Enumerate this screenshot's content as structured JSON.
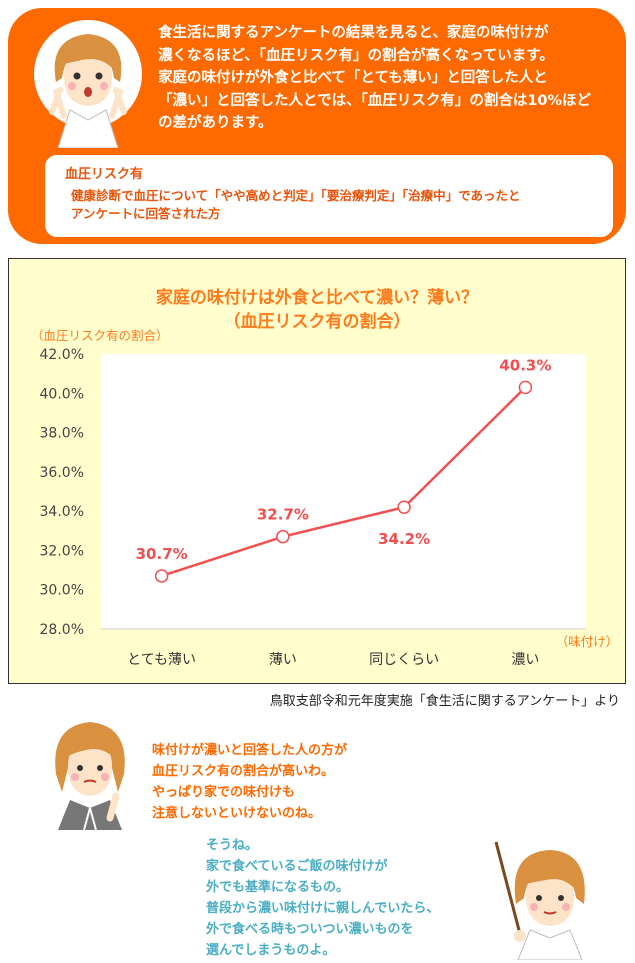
{
  "intro": {
    "lines": [
      "食生活に関するアンケートの結果を見ると、家庭の味付けが",
      "濃くなるほど、「血圧リスク有」の割合が高くなっています。",
      "家庭の味付けが外食と比べて「とても薄い」と回答した人と",
      "「濃い」と回答した人とでは、「血圧リスク有」の割合は10%ほど",
      "の差があります。"
    ]
  },
  "definition": {
    "title": "血圧リスク有",
    "lines": [
      "健康診断で血圧について「やや高めと判定」「要治療判定」「治療中」であったと",
      "アンケートに回答された方"
    ]
  },
  "chart_data": {
    "type": "line",
    "title": "家庭の味付けは外食と比べて濃い？薄い？",
    "subtitle": "（血圧リスク有の割合）",
    "ylabel": "（血圧リスク有の割合）",
    "xlabel": "（味付け）",
    "categories": [
      "とても薄い",
      "薄い",
      "同じくらい",
      "濃い"
    ],
    "values": [
      30.7,
      32.7,
      34.2,
      40.3
    ],
    "data_labels": [
      "30.7%",
      "32.7%",
      "34.2%",
      "40.3%"
    ],
    "y_ticks": [
      "42.0%",
      "40.0%",
      "38.0%",
      "36.0%",
      "34.0%",
      "32.0%",
      "30.0%",
      "28.0%"
    ],
    "ylim": [
      28,
      42
    ],
    "grid": false,
    "line_color": "#f0504f",
    "label_color": "#f0504f",
    "title_color": "#ff7a1a"
  },
  "source": "鳥取支部令和元年度実施「食生活に関するアンケート」より",
  "speech_woman": [
    "味付けが濃いと回答した人の方が",
    "血圧リスク有の割合が高いわ。",
    "やっぱり家での味付けも",
    "注意しないといけないのね。"
  ],
  "speech_teacher": [
    "そうね。",
    "家で食べているご飯の味付けが",
    "外でも基準になるもの。",
    "普段から濃い味付けに親しんでいたら、",
    "外で食べる時もついつい濃いものを",
    "選んでしまうものよ。"
  ],
  "colors": {
    "banner": "#ff6a00",
    "chart_bg": "#fffecc",
    "teacher_text": "#4aaec4"
  }
}
